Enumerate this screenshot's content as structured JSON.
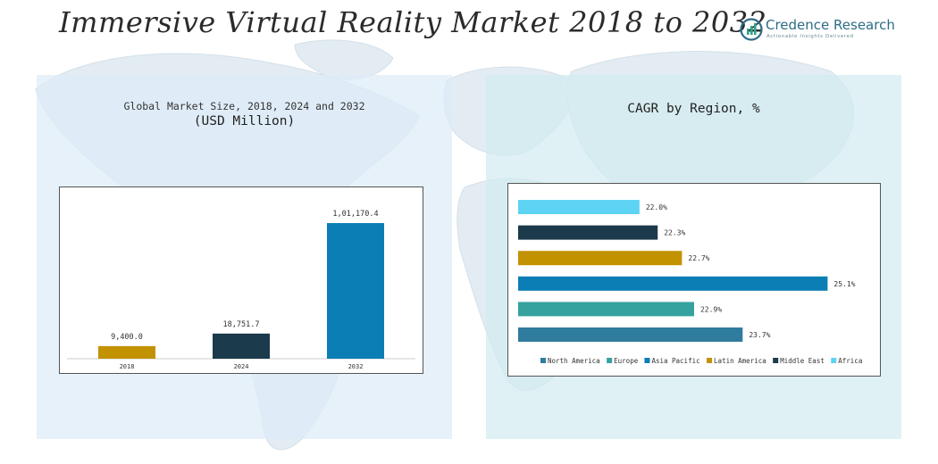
{
  "header": {
    "title": "Immersive Virtual Reality Market 2018 to 2032",
    "logo_name": "Credence Research",
    "logo_tagline": "Actionable Insights Delivered"
  },
  "left_panel": {
    "title_line1": "Global Market Size, 2018, 2024 and 2032",
    "title_line2": "(USD Million)"
  },
  "right_panel": {
    "title": "CAGR by Region, %"
  },
  "colors": {
    "gold": "#c39200",
    "navy": "#1b3a4b",
    "blue": "#0a7eb5",
    "teal": "#35a29f",
    "steel": "#2f7c9e",
    "sky": "#5ed3f3"
  },
  "chart_data": [
    {
      "type": "bar",
      "title": "Global Market Size, 2018, 2024 and 2032",
      "subtitle": "(USD Million)",
      "categories": [
        "2018",
        "2024",
        "2032"
      ],
      "values": [
        9400.0,
        18751.7,
        101170.4
      ],
      "value_labels": [
        "9,400.0",
        "18,751.7",
        "1,01,170.4"
      ],
      "colors": [
        "#c39200",
        "#1b3a4b",
        "#0a7eb5"
      ],
      "ylim": [
        0,
        101170.4
      ],
      "grid": false
    },
    {
      "type": "bar",
      "orientation": "horizontal",
      "title": "CAGR by Region, %",
      "categories": [
        "Africa",
        "Middle East",
        "Latin America",
        "Asia Pacific",
        "Europe",
        "North America"
      ],
      "values": [
        22.0,
        22.3,
        22.7,
        25.1,
        22.9,
        23.7
      ],
      "value_labels": [
        "22.0%",
        "22.3%",
        "22.7%",
        "25.1%",
        "22.9%",
        "23.7%"
      ],
      "colors": [
        "#5ed3f3",
        "#1b3a4b",
        "#c39200",
        "#0a7eb5",
        "#35a29f",
        "#2f7c9e"
      ],
      "xlim": [
        20.0,
        25.3
      ],
      "legend": {
        "placement": "bottom",
        "entries": [
          {
            "name": "North America",
            "color": "#2f7c9e"
          },
          {
            "name": "Europe",
            "color": "#35a29f"
          },
          {
            "name": "Asia Pacific",
            "color": "#0a7eb5"
          },
          {
            "name": "Latin America",
            "color": "#c39200"
          },
          {
            "name": "Middle East",
            "color": "#1b3a4b"
          },
          {
            "name": "Africa",
            "color": "#5ed3f3"
          }
        ]
      },
      "grid": false
    }
  ]
}
